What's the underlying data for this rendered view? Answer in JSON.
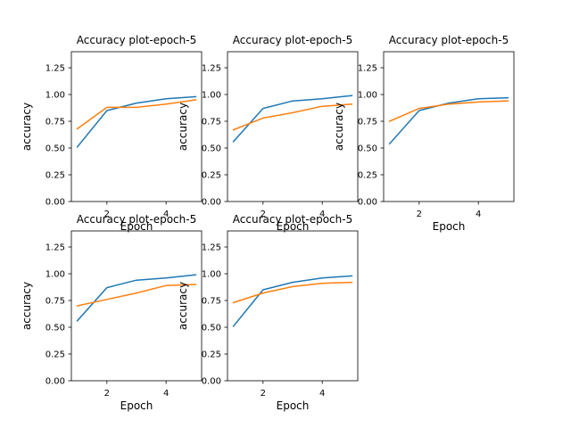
{
  "chart_data": [
    {
      "type": "line",
      "title": "Accuracy plot-epoch-5",
      "xlabel": "Epoch",
      "ylabel": "accuracy",
      "x": [
        1,
        2,
        3,
        4,
        5
      ],
      "xlim": [
        0.8,
        5.2
      ],
      "ylim": [
        0,
        1.4
      ],
      "xticks": [
        2,
        4
      ],
      "yticks": [
        0.0,
        0.25,
        0.5,
        0.75,
        1.0,
        1.25
      ],
      "xticklabels": [
        "2",
        "4"
      ],
      "yticklabels": [
        "0.00",
        "0.25",
        "0.50",
        "0.75",
        "1.00",
        "1.25"
      ],
      "grid": false,
      "series": [
        {
          "color": "#1f77b4",
          "values": [
            0.51,
            0.85,
            0.92,
            0.96,
            0.98
          ]
        },
        {
          "color": "#ff7f0e",
          "values": [
            0.68,
            0.88,
            0.88,
            0.91,
            0.95
          ]
        }
      ]
    },
    {
      "type": "line",
      "title": "Accuracy plot-epoch-5",
      "xlabel": "Epoch",
      "ylabel": "accuracy",
      "x": [
        1,
        2,
        3,
        4,
        5
      ],
      "xlim": [
        0.8,
        5.2
      ],
      "ylim": [
        0,
        1.4
      ],
      "xticks": [
        2,
        4
      ],
      "yticks": [
        0.0,
        0.25,
        0.5,
        0.75,
        1.0,
        1.25
      ],
      "xticklabels": [
        "2",
        "4"
      ],
      "yticklabels": [
        "0.00",
        "0.25",
        "0.50",
        "0.75",
        "1.00",
        "1.25"
      ],
      "grid": false,
      "series": [
        {
          "color": "#1f77b4",
          "values": [
            0.56,
            0.87,
            0.94,
            0.96,
            0.99
          ]
        },
        {
          "color": "#ff7f0e",
          "values": [
            0.67,
            0.78,
            0.83,
            0.89,
            0.91
          ]
        }
      ]
    },
    {
      "type": "line",
      "title": "Accuracy plot-epoch-5",
      "xlabel": "Epoch",
      "ylabel": "accuracy",
      "x": [
        1,
        2,
        3,
        4,
        5
      ],
      "xlim": [
        0.8,
        5.2
      ],
      "ylim": [
        0,
        1.4
      ],
      "xticks": [
        2,
        4
      ],
      "yticks": [
        0.0,
        0.25,
        0.5,
        0.75,
        1.0,
        1.25
      ],
      "xticklabels": [
        "2",
        "4"
      ],
      "yticklabels": [
        "0.00",
        "0.25",
        "0.50",
        "0.75",
        "1.00",
        "1.25"
      ],
      "grid": false,
      "series": [
        {
          "color": "#1f77b4",
          "values": [
            0.54,
            0.85,
            0.92,
            0.96,
            0.97
          ]
        },
        {
          "color": "#ff7f0e",
          "values": [
            0.75,
            0.87,
            0.91,
            0.93,
            0.94
          ]
        }
      ]
    },
    {
      "type": "line",
      "title": "Accuracy plot-epoch-5",
      "xlabel": "Epoch",
      "ylabel": "accuracy",
      "x": [
        1,
        2,
        3,
        4,
        5
      ],
      "xlim": [
        0.8,
        5.2
      ],
      "ylim": [
        0,
        1.4
      ],
      "xticks": [
        2,
        4
      ],
      "yticks": [
        0.0,
        0.25,
        0.5,
        0.75,
        1.0,
        1.25
      ],
      "xticklabels": [
        "2",
        "4"
      ],
      "yticklabels": [
        "0.00",
        "0.25",
        "0.50",
        "0.75",
        "1.00",
        "1.25"
      ],
      "grid": false,
      "series": [
        {
          "color": "#1f77b4",
          "values": [
            0.56,
            0.87,
            0.94,
            0.96,
            0.99
          ]
        },
        {
          "color": "#ff7f0e",
          "values": [
            0.7,
            0.76,
            0.82,
            0.89,
            0.9
          ]
        }
      ]
    },
    {
      "type": "line",
      "title": "Accuracy plot-epoch-5",
      "xlabel": "Epoch",
      "ylabel": "accuracy",
      "x": [
        1,
        2,
        3,
        4,
        5
      ],
      "xlim": [
        0.8,
        5.2
      ],
      "ylim": [
        0,
        1.4
      ],
      "xticks": [
        2,
        4
      ],
      "yticks": [
        0.0,
        0.25,
        0.5,
        0.75,
        1.0,
        1.25
      ],
      "xticklabels": [
        "2",
        "4"
      ],
      "yticklabels": [
        "0.00",
        "0.25",
        "0.50",
        "0.75",
        "1.00",
        "1.25"
      ],
      "grid": false,
      "series": [
        {
          "color": "#1f77b4",
          "values": [
            0.51,
            0.85,
            0.92,
            0.96,
            0.98
          ]
        },
        {
          "color": "#ff7f0e",
          "values": [
            0.73,
            0.82,
            0.88,
            0.91,
            0.92
          ]
        }
      ]
    }
  ]
}
